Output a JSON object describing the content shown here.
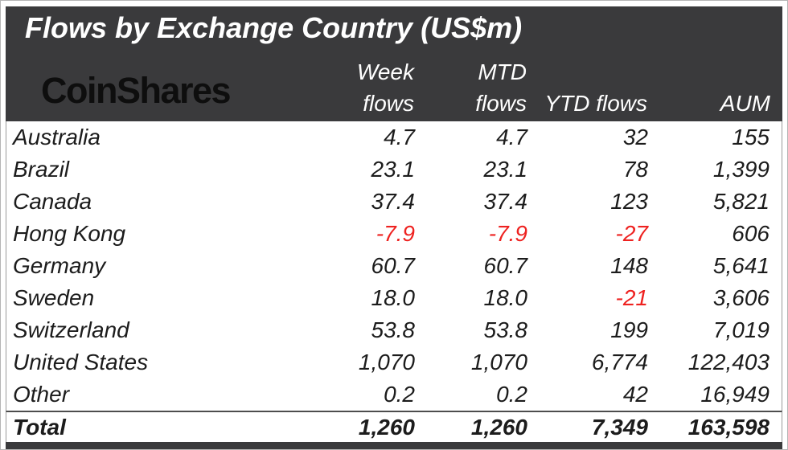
{
  "brand": {
    "logo": "CoinShares"
  },
  "colors": {
    "header_bg": "#3a3a3c",
    "header_text": "#ffffff",
    "body_text": "#1c1c1c",
    "negative": "#ee2220",
    "logo_text": "#0e0e0e"
  },
  "chart_data": {
    "type": "table",
    "title": "Flows by Exchange Country (US$m)",
    "columns": [
      {
        "top": "Week",
        "bottom": "flows"
      },
      {
        "top": "MTD",
        "bottom": "flows"
      },
      {
        "top": "",
        "bottom": "YTD flows"
      },
      {
        "top": "",
        "bottom": "AUM"
      }
    ],
    "column_labels": [
      "Week flows",
      "MTD flows",
      "YTD flows",
      "AUM"
    ],
    "rows": [
      {
        "country": "Australia",
        "values": [
          "4.7",
          "4.7",
          "32",
          "155"
        ],
        "values_numeric": [
          4.7,
          4.7,
          32,
          155
        ]
      },
      {
        "country": "Brazil",
        "values": [
          "23.1",
          "23.1",
          "78",
          "1,399"
        ],
        "values_numeric": [
          23.1,
          23.1,
          78,
          1399
        ]
      },
      {
        "country": "Canada",
        "values": [
          "37.4",
          "37.4",
          "123",
          "5,821"
        ],
        "values_numeric": [
          37.4,
          37.4,
          123,
          5821
        ]
      },
      {
        "country": "Hong Kong",
        "values": [
          "-7.9",
          "-7.9",
          "-27",
          "606"
        ],
        "values_numeric": [
          -7.9,
          -7.9,
          -27,
          606
        ]
      },
      {
        "country": "Germany",
        "values": [
          "60.7",
          "60.7",
          "148",
          "5,641"
        ],
        "values_numeric": [
          60.7,
          60.7,
          148,
          5641
        ]
      },
      {
        "country": "Sweden",
        "values": [
          "18.0",
          "18.0",
          "-21",
          "3,606"
        ],
        "values_numeric": [
          18.0,
          18.0,
          -21,
          3606
        ]
      },
      {
        "country": "Switzerland",
        "values": [
          "53.8",
          "53.8",
          "199",
          "7,019"
        ],
        "values_numeric": [
          53.8,
          53.8,
          199,
          7019
        ]
      },
      {
        "country": "United States",
        "values": [
          "1,070",
          "1,070",
          "6,774",
          "122,403"
        ],
        "values_numeric": [
          1070,
          1070,
          6774,
          122403
        ]
      },
      {
        "country": "Other",
        "values": [
          "0.2",
          "0.2",
          "42",
          "16,949"
        ],
        "values_numeric": [
          0.2,
          0.2,
          42,
          16949
        ]
      }
    ],
    "total": {
      "label": "Total",
      "values": [
        "1,260",
        "1,260",
        "7,349",
        "163,598"
      ],
      "values_numeric": [
        1260,
        1260,
        7349,
        163598
      ]
    }
  }
}
